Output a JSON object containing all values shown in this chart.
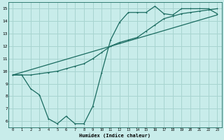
{
  "background_color": "#c8ecea",
  "line_color": "#1a6b60",
  "grid_color": "#a8d4d0",
  "xlabel": "Humidex (Indice chaleur)",
  "xlim": [
    -0.5,
    23.5
  ],
  "ylim": [
    5.5,
    15.5
  ],
  "xticks": [
    0,
    1,
    2,
    3,
    4,
    5,
    6,
    7,
    8,
    9,
    10,
    11,
    12,
    13,
    14,
    15,
    16,
    17,
    18,
    19,
    20,
    21,
    22,
    23
  ],
  "yticks": [
    6,
    7,
    8,
    9,
    10,
    11,
    12,
    13,
    14,
    15
  ],
  "line1_x": [
    0,
    1,
    2,
    3,
    4,
    5,
    6,
    7,
    8,
    9,
    10,
    11,
    12,
    13,
    14,
    15,
    16,
    17,
    18,
    19,
    20,
    21,
    22,
    23
  ],
  "line1_y": [
    9.7,
    9.7,
    8.6,
    8.1,
    6.2,
    5.8,
    6.4,
    5.8,
    5.8,
    7.2,
    9.9,
    12.5,
    13.9,
    14.7,
    14.7,
    14.7,
    15.2,
    14.6,
    14.5,
    15.0,
    15.0,
    15.0,
    15.0,
    14.6
  ],
  "line2_x": [
    0,
    1,
    2,
    3,
    4,
    5,
    6,
    7,
    8,
    9,
    10,
    11,
    12,
    13,
    14,
    15,
    16,
    17,
    18,
    19,
    20,
    21,
    22,
    23
  ],
  "line2_y": [
    9.7,
    9.7,
    9.7,
    9.8,
    9.9,
    10.0,
    10.2,
    10.4,
    10.6,
    11.0,
    11.5,
    12.0,
    12.3,
    12.5,
    12.7,
    13.2,
    13.7,
    14.2,
    14.4,
    14.6,
    14.7,
    14.8,
    14.9,
    15.0
  ],
  "line3_x": [
    0,
    23
  ],
  "line3_y": [
    9.7,
    14.5
  ]
}
